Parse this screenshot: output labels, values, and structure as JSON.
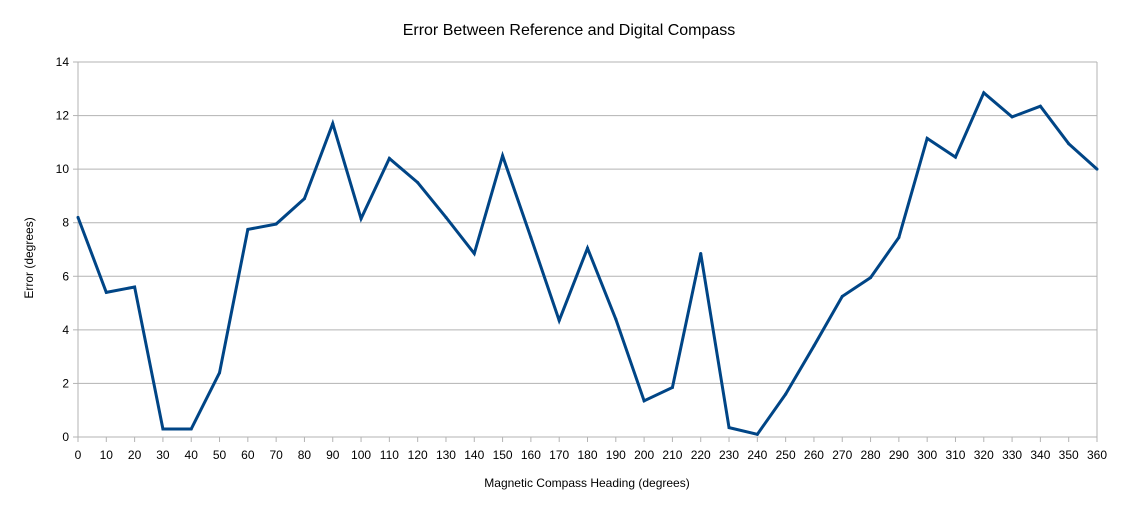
{
  "chart_data": {
    "type": "line",
    "title": "Error Between Reference and Digital Compass",
    "xlabel": "Magnetic Compass Heading (degrees)",
    "ylabel": "Error (degrees)",
    "xlim": [
      0,
      360
    ],
    "ylim": [
      0,
      14
    ],
    "x_ticks": [
      0,
      10,
      20,
      30,
      40,
      50,
      60,
      70,
      80,
      90,
      100,
      110,
      120,
      130,
      140,
      150,
      160,
      170,
      180,
      190,
      200,
      210,
      220,
      230,
      240,
      250,
      260,
      270,
      280,
      290,
      300,
      310,
      320,
      330,
      340,
      350,
      360
    ],
    "y_ticks": [
      0,
      2,
      4,
      6,
      8,
      10,
      12,
      14
    ],
    "grid": "horizontal",
    "legend": "none",
    "series": [
      {
        "color": "#004586",
        "x": [
          0,
          10,
          20,
          30,
          40,
          50,
          60,
          70,
          80,
          90,
          100,
          110,
          120,
          130,
          140,
          150,
          160,
          170,
          180,
          190,
          200,
          210,
          220,
          230,
          240,
          250,
          260,
          270,
          280,
          290,
          300,
          310,
          320,
          330,
          340,
          350,
          360
        ],
        "values": [
          8.2,
          5.4,
          5.6,
          0.3,
          0.3,
          2.4,
          7.75,
          7.95,
          8.9,
          11.7,
          8.15,
          10.4,
          9.5,
          8.2,
          6.85,
          10.5,
          7.45,
          4.35,
          7.05,
          4.4,
          1.35,
          1.85,
          6.85,
          0.35,
          0.1,
          1.6,
          3.4,
          5.25,
          5.95,
          7.45,
          11.15,
          10.45,
          12.85,
          11.95,
          12.35,
          10.95,
          10.0
        ]
      }
    ]
  },
  "colors": {
    "line": "#004586",
    "grid": "#b3b3b3",
    "axis": "#b3b3b3",
    "background": "#ffffff"
  }
}
